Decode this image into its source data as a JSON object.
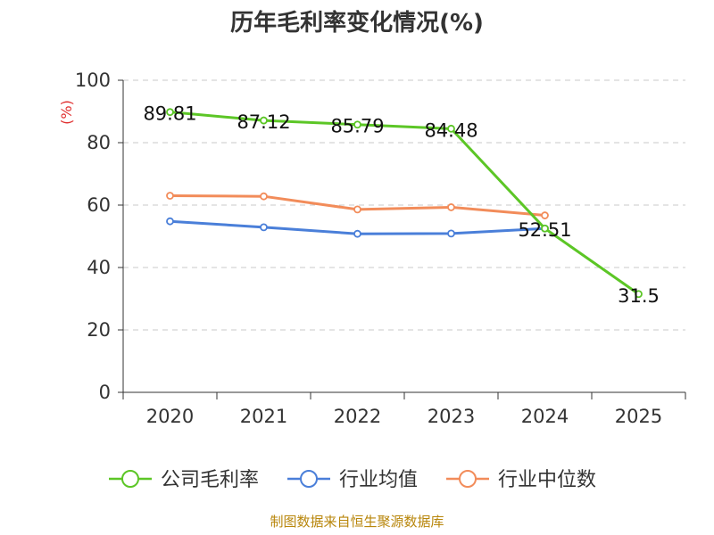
{
  "chart_data": {
    "type": "line",
    "title": "历年毛利率变化情况(%)",
    "ylabel": "(%)",
    "xlabel": "",
    "categories": [
      "2020",
      "2021",
      "2022",
      "2023",
      "2024",
      "2025"
    ],
    "ylim": [
      0,
      100
    ],
    "yticks": [
      0,
      20,
      40,
      60,
      80,
      100
    ],
    "grid": true,
    "legend_position": "bottom",
    "series": [
      {
        "name": "公司毛利率",
        "color": "#5cc626",
        "values": [
          89.81,
          87.12,
          85.79,
          84.48,
          52.51,
          31.5
        ],
        "labels": [
          "89.81",
          "87.12",
          "85.79",
          "84.48",
          "52.51",
          "31.5"
        ]
      },
      {
        "name": "行业均值",
        "color": "#4a7fd9",
        "values": [
          54.8,
          52.9,
          50.8,
          50.9,
          52.5,
          null
        ]
      },
      {
        "name": "行业中位数",
        "color": "#f28c5a",
        "values": [
          63.0,
          62.8,
          58.6,
          59.3,
          56.7,
          null
        ]
      }
    ]
  },
  "footer": {
    "source": "制图数据来自恒生聚源数据库"
  }
}
